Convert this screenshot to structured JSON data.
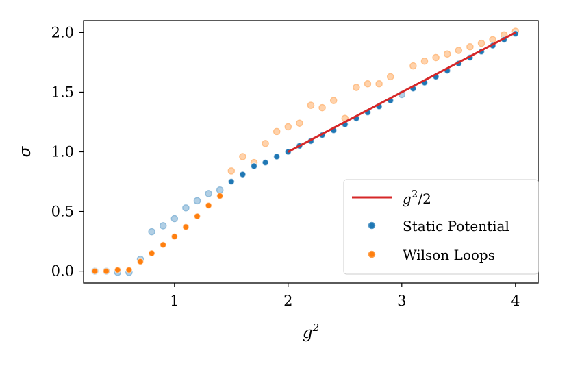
{
  "chart_data": {
    "type": "scatter",
    "xlabel": "g",
    "xlabel_sup": "2",
    "ylabel": "σ",
    "xlim": [
      0.2,
      4.2
    ],
    "ylim": [
      -0.1,
      2.1
    ],
    "xticks": [
      1,
      2,
      3,
      4
    ],
    "xtick_labels": [
      "1",
      "2",
      "3",
      "4"
    ],
    "yticks": [
      0.0,
      0.5,
      1.0,
      1.5,
      2.0
    ],
    "ytick_labels": [
      "0.0",
      "0.5",
      "1.0",
      "1.5",
      "2.0"
    ],
    "grid": false,
    "legend_position": "lower-right",
    "legend": [
      {
        "label": "g",
        "label_sup": "2",
        "label_tail": "/2",
        "kind": "line",
        "color": "#d62728"
      },
      {
        "label": "Static Potential",
        "kind": "marker",
        "color": "#1f77b4"
      },
      {
        "label": "Wilson Loops",
        "kind": "marker",
        "color": "#ff7f0e"
      }
    ],
    "series": [
      {
        "name": "g²/2",
        "kind": "line",
        "color": "#d62728",
        "x": [
          2.0,
          4.0
        ],
        "y": [
          1.0,
          2.0
        ]
      },
      {
        "name": "Static Potential (faded)",
        "kind": "marker",
        "color": "#1f77b4",
        "alpha": 0.35,
        "x": [
          0.3,
          0.4,
          0.5,
          0.6,
          0.7,
          0.8,
          0.9,
          1.0,
          1.1,
          1.2,
          1.3,
          1.4,
          3.0
        ],
        "y": [
          0.0,
          0.0,
          -0.01,
          -0.01,
          0.1,
          0.33,
          0.38,
          0.44,
          0.53,
          0.59,
          0.65,
          0.68,
          1.48
        ]
      },
      {
        "name": "Wilson Loops (faded)",
        "kind": "marker",
        "color": "#ff7f0e",
        "alpha": 0.35,
        "x": [
          1.5,
          1.6,
          1.7,
          1.8,
          1.9,
          2.0,
          2.1,
          2.2,
          2.3,
          2.4,
          2.5,
          2.6,
          2.7,
          2.8,
          2.9,
          3.1,
          3.2,
          3.3,
          3.4,
          3.5,
          3.6,
          3.7,
          3.8,
          3.9,
          4.0
        ],
        "y": [
          0.84,
          0.96,
          0.91,
          1.07,
          1.17,
          1.21,
          1.24,
          1.39,
          1.37,
          1.43,
          1.28,
          1.54,
          1.57,
          1.57,
          1.63,
          1.72,
          1.76,
          1.79,
          1.82,
          1.85,
          1.88,
          1.91,
          1.94,
          1.98,
          2.01
        ]
      },
      {
        "name": "Wilson Loops",
        "kind": "marker",
        "color": "#ff7f0e",
        "alpha": 1,
        "x": [
          0.3,
          0.4,
          0.5,
          0.6,
          0.7,
          0.8,
          0.9,
          1.0,
          1.1,
          1.2,
          1.3,
          1.4
        ],
        "y": [
          0.0,
          0.0,
          0.01,
          0.01,
          0.08,
          0.15,
          0.22,
          0.29,
          0.37,
          0.46,
          0.55,
          0.63
        ]
      },
      {
        "name": "Static Potential",
        "kind": "marker",
        "color": "#1f77b4",
        "alpha": 1,
        "x": [
          1.5,
          1.6,
          1.7,
          1.8,
          1.9,
          2.0,
          2.1,
          2.2,
          2.3,
          2.4,
          2.5,
          2.6,
          2.7,
          2.8,
          2.9,
          3.1,
          3.2,
          3.3,
          3.4,
          3.5,
          3.6,
          3.7,
          3.8,
          3.9,
          4.0
        ],
        "y": [
          0.75,
          0.81,
          0.88,
          0.91,
          0.96,
          1.0,
          1.05,
          1.09,
          1.14,
          1.18,
          1.23,
          1.28,
          1.33,
          1.38,
          1.43,
          1.53,
          1.58,
          1.63,
          1.68,
          1.74,
          1.79,
          1.84,
          1.89,
          1.94,
          1.99
        ]
      }
    ]
  }
}
